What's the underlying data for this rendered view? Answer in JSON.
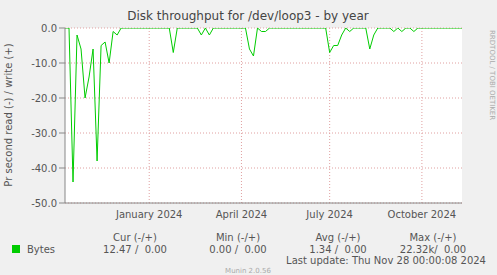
{
  "chart_data": {
    "type": "line",
    "title": "Disk throughput for /dev/loop3 - by year",
    "ylabel": "Pr second read (-) / write (+)",
    "categories": [
      null,
      null,
      null,
      null,
      null,
      null,
      null,
      null,
      null,
      null,
      null,
      null,
      null,
      null,
      null,
      null,
      null,
      null,
      null,
      null,
      null,
      "January 2024",
      null,
      null,
      null,
      null,
      null,
      null,
      null,
      null,
      null,
      null,
      null,
      null,
      null,
      null,
      null,
      null,
      null,
      null,
      null,
      null,
      null,
      null,
      "April 2024",
      null,
      null,
      null,
      null,
      null,
      null,
      null,
      null,
      null,
      null,
      null,
      null,
      null,
      null,
      null,
      null,
      null,
      null,
      null,
      null,
      null,
      "July 2024",
      null,
      null,
      null,
      null,
      null,
      null,
      null,
      null,
      null,
      null,
      null,
      null,
      null,
      null,
      null,
      null,
      null,
      null,
      null,
      null,
      null,
      null,
      "October 2024",
      null,
      null,
      null,
      null,
      null,
      null,
      null,
      null,
      null,
      null
    ],
    "series": [
      {
        "name": "Bytes",
        "color": "#00cc00",
        "values": [
          0,
          0,
          -44,
          -2,
          -6,
          -20,
          -14,
          -6,
          -38,
          -5,
          -4,
          -10,
          -1,
          -2,
          0,
          0,
          0,
          0,
          0,
          0,
          0,
          0,
          0,
          0,
          0,
          0,
          0,
          -7,
          0,
          0,
          0,
          0,
          0,
          0,
          -2,
          0,
          -2,
          0,
          0,
          0,
          0,
          0,
          0,
          0,
          0,
          0,
          -6,
          -8,
          0,
          -1,
          -1,
          0,
          0,
          0,
          0,
          0,
          0,
          0,
          0,
          0,
          0,
          0,
          0,
          0,
          0,
          0,
          -7,
          -5,
          -5,
          -2,
          0,
          -1,
          0,
          0,
          0,
          0,
          -6,
          -2,
          0,
          0,
          0,
          0,
          -1,
          0,
          -1,
          0,
          0,
          -1,
          0,
          0,
          0,
          0,
          0,
          0,
          0,
          0,
          0,
          0,
          0,
          0
        ]
      }
    ],
    "ylim": [
      -50,
      0
    ],
    "yticks": [
      {
        "value": -50,
        "label": "-50.0"
      },
      {
        "value": -40,
        "label": "-40.0"
      },
      {
        "value": -30,
        "label": "-30.0"
      },
      {
        "value": -20,
        "label": "-20.0"
      },
      {
        "value": -10,
        "label": "-10.0"
      },
      {
        "value": 0,
        "label": "0.0"
      }
    ],
    "grid": true,
    "stats": {
      "headers": [
        "Cur (-/+)",
        "Min (-/+)",
        "Avg (-/+)",
        "Max (-/+)"
      ],
      "rows": [
        {
          "name": "Bytes",
          "values": [
            "12.47 /  0.00",
            "0.00 /  0.00",
            "1.34 /  0.00",
            "22.32k/  0.00"
          ]
        }
      ]
    },
    "annotations": [
      "Last update: Thu Nov 28 00:00:08 2024",
      "Munin 2.0.56",
      "RRDTOOL / TOBI OETIKER"
    ]
  }
}
